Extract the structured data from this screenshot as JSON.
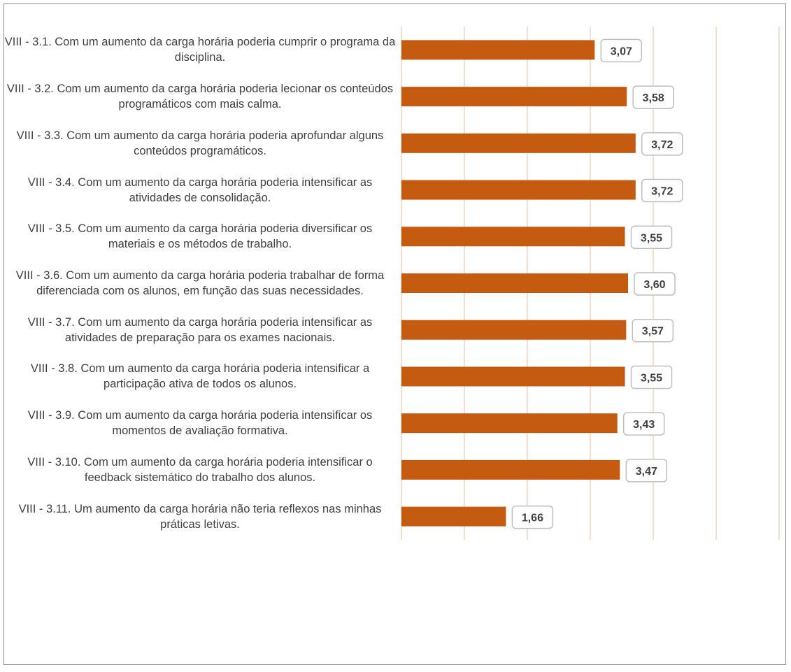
{
  "chart_data": {
    "type": "bar",
    "orientation": "horizontal",
    "title": "",
    "xlabel": "",
    "ylabel": "",
    "xlim": [
      0,
      6
    ],
    "grid": true,
    "legend": "none",
    "bar_color": "#C55A11",
    "gridline_color": "#F8CBAD",
    "categories": [
      "VIII - 3.1. Com um aumento da carga horária poderia cumprir o programa da disciplina.",
      "VIII - 3.2. Com um aumento da carga horária poderia lecionar os conteúdos programáticos com mais calma.",
      "VIII - 3.3. Com um aumento da carga horária poderia aprofundar alguns conteúdos programáticos.",
      "VIII - 3.4. Com um aumento da carga horária poderia intensificar as atividades de consolidação.",
      "VIII - 3.5. Com um aumento da carga horária poderia diversificar os materiais e os métodos de trabalho.",
      "VIII - 3.6. Com um aumento da carga horária poderia trabalhar de forma diferenciada com os alunos, em função das suas necessidades.",
      "VIII - 3.7. Com um aumento da carga horária poderia intensificar as atividades de preparação para os exames nacionais.",
      "VIII - 3.8. Com um aumento da carga horária poderia intensificar a participação ativa de todos os alunos.",
      "VIII - 3.9. Com um aumento da carga horária poderia intensificar os momentos de avaliação formativa.",
      "VIII - 3.10. Com um aumento da carga horária poderia intensificar o feedback sistemático do trabalho dos alunos.",
      "VIII - 3.11. Um aumento da carga horária não teria reflexos nas minhas práticas letivas."
    ],
    "values": [
      3.07,
      3.58,
      3.72,
      3.72,
      3.55,
      3.6,
      3.57,
      3.55,
      3.43,
      3.47,
      1.66
    ],
    "data_labels": [
      "3,07",
      "3,58",
      "3,72",
      "3,72",
      "3,55",
      "3,60",
      "3,57",
      "3,55",
      "3,43",
      "3,47",
      "1,66"
    ]
  }
}
